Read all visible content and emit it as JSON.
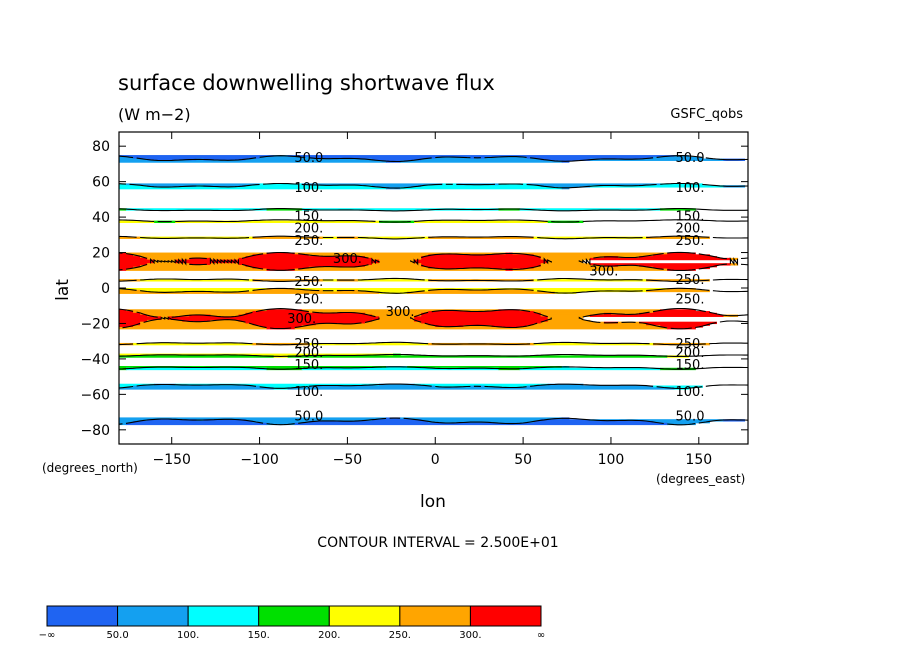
{
  "title": "surface downwelling shortwave flux",
  "units": "(W m−2)",
  "source": "GSFC_qobs",
  "contour_interval": "CONTOUR INTERVAL = 2.500E+01",
  "colors": {
    "levels": [
      "#1f64f2",
      "#14a0f0",
      "#00ffff",
      "#00e000",
      "#ffff00",
      "#ffa500",
      "#ff0000"
    ]
  },
  "chart_data": {
    "type": "heatmap",
    "title": "surface downwelling shortwave flux",
    "subtitle": "(W m−2)",
    "xlabel": "lon",
    "ylabel": "lat",
    "x_units": "(degrees_east)",
    "y_units": "(degrees_north)",
    "xlim": [
      -180,
      178
    ],
    "ylim": [
      -88,
      88
    ],
    "x_ticks": [
      -150,
      -100,
      -50,
      0,
      50,
      100,
      150
    ],
    "x_tick_labels": [
      "−150",
      "−100",
      "−50",
      "0",
      "50",
      "100",
      "150"
    ],
    "y_ticks": [
      80,
      60,
      40,
      20,
      0,
      -20,
      -40,
      -60,
      -80
    ],
    "y_tick_labels": [
      "80",
      "60",
      "40",
      "20",
      "0",
      "−20",
      "−40",
      "−60",
      "−80"
    ],
    "levels": [
      50,
      100,
      150,
      200,
      250,
      300
    ],
    "colorbar_labels": [
      "−∞",
      "50.0",
      "100.",
      "150.",
      "200.",
      "250.",
      "300.",
      "∞"
    ],
    "lat_profile": {
      "lat": [
        -88,
        -75,
        -63,
        -55,
        -45,
        -38,
        -33,
        -28,
        -24,
        -20,
        -17,
        -14,
        -11,
        -7,
        -3,
        0,
        3,
        6,
        9,
        12,
        15,
        18,
        22,
        26,
        31,
        38,
        44,
        50,
        58,
        65,
        75,
        88
      ],
      "flux": [
        25,
        50,
        80,
        100,
        150,
        200,
        240,
        270,
        290,
        300,
        310,
        300,
        285,
        265,
        255,
        245,
        240,
        260,
        285,
        300,
        310,
        300,
        280,
        265,
        235,
        200,
        150,
        120,
        100,
        70,
        45,
        20
      ]
    },
    "contour_labels": [
      {
        "text": "50.0",
        "lon": -72,
        "lat": 74
      },
      {
        "text": "50.0",
        "lon": 145,
        "lat": 74
      },
      {
        "text": "100.",
        "lon": -72,
        "lat": 57
      },
      {
        "text": "100.",
        "lon": 145,
        "lat": 57
      },
      {
        "text": "150.",
        "lon": -72,
        "lat": 41
      },
      {
        "text": "150.",
        "lon": 145,
        "lat": 41
      },
      {
        "text": "200.",
        "lon": -72,
        "lat": 34
      },
      {
        "text": "200.",
        "lon": 145,
        "lat": 34
      },
      {
        "text": "250.",
        "lon": -72,
        "lat": 27
      },
      {
        "text": "250.",
        "lon": 145,
        "lat": 27
      },
      {
        "text": "300.",
        "lon": -50,
        "lat": 17
      },
      {
        "text": "300.",
        "lon": 96,
        "lat": 10
      },
      {
        "text": "250.",
        "lon": -72,
        "lat": 4
      },
      {
        "text": "250.",
        "lon": 145,
        "lat": 5
      },
      {
        "text": "250.",
        "lon": -72,
        "lat": -6
      },
      {
        "text": "250.",
        "lon": 145,
        "lat": -6
      },
      {
        "text": "300.",
        "lon": -76,
        "lat": -17
      },
      {
        "text": "300.",
        "lon": -20,
        "lat": -13
      },
      {
        "text": "250.",
        "lon": -72,
        "lat": -31
      },
      {
        "text": "250.",
        "lon": 145,
        "lat": -31
      },
      {
        "text": "200.",
        "lon": -72,
        "lat": -36
      },
      {
        "text": "200.",
        "lon": 145,
        "lat": -36
      },
      {
        "text": "150.",
        "lon": -72,
        "lat": -43
      },
      {
        "text": "150.",
        "lon": 145,
        "lat": -43
      },
      {
        "text": "100.",
        "lon": -72,
        "lat": -58
      },
      {
        "text": "100.",
        "lon": 145,
        "lat": -58
      },
      {
        "text": "50.0",
        "lon": -72,
        "lat": -72
      },
      {
        "text": "50.0",
        "lon": 145,
        "lat": -72
      }
    ]
  }
}
